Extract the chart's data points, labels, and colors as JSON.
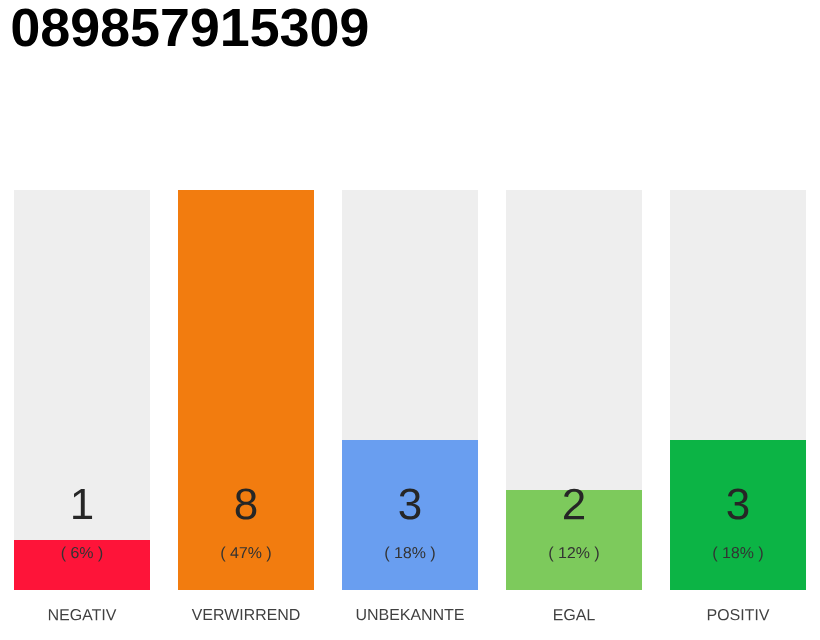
{
  "chart_data": {
    "type": "bar",
    "title": "089857915309",
    "categories": [
      "NEGATIV",
      "VERWIRREND",
      "UNBEKANNTE",
      "EGAL",
      "POSITIV"
    ],
    "stacked": true,
    "series": [
      {
        "colors": [
          "#fe1439",
          "#f27c0f",
          "#699ef0",
          "#7dca5c",
          "#0cb445"
        ],
        "values": [
          1,
          8,
          3,
          2,
          3
        ],
        "value_labels": [
          "1",
          "8",
          "3",
          "2",
          "3"
        ]
      },
      {
        "color": "#eeeeee",
        "values": [
          7,
          0,
          5,
          6,
          5
        ]
      }
    ],
    "annotations": [
      "( 6% )",
      "( 47% )",
      "( 18% )",
      "( 12% )",
      "( 18% )"
    ]
  }
}
